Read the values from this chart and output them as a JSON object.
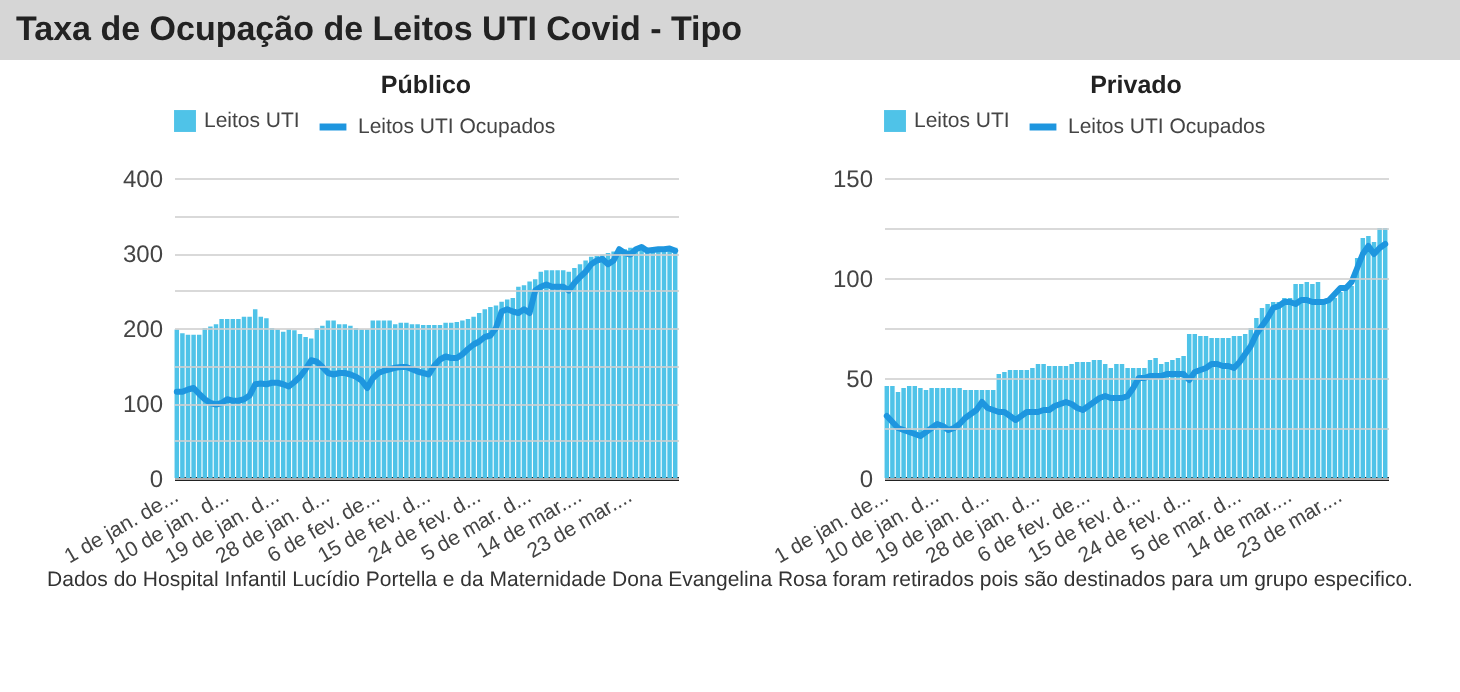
{
  "chart_data": [
    {
      "type": "other",
      "title": "Taxa de Ocupação de Leitos UTI Covid - Tipo"
    },
    {
      "type": "bar",
      "title": "Público",
      "legend": "top",
      "grid": "y",
      "line_style": "solid",
      "marker": "none",
      "ylim": [
        0,
        400
      ],
      "yticks": [
        0,
        {
          "value": 50,
          "label": null
        },
        100,
        {
          "value": 150,
          "label": null
        },
        200,
        {
          "value": 250,
          "label": null
        },
        300,
        {
          "value": 350,
          "label": null
        },
        400
      ],
      "categories": [
        "1 de jan. de...",
        null,
        null,
        null,
        null,
        null,
        null,
        null,
        null,
        "10 de jan. d...",
        null,
        null,
        null,
        null,
        null,
        null,
        null,
        null,
        "19 de jan. d...",
        null,
        null,
        null,
        null,
        null,
        null,
        null,
        null,
        "28 de jan. d...",
        null,
        null,
        null,
        null,
        null,
        null,
        null,
        null,
        "6 de fev. de...",
        null,
        null,
        null,
        null,
        null,
        null,
        null,
        null,
        "15 de fev. d...",
        null,
        null,
        null,
        null,
        null,
        null,
        null,
        null,
        "24 de fev. d...",
        null,
        null,
        null,
        null,
        null,
        null,
        null,
        null,
        "5 de mar. d...",
        null,
        null,
        null,
        null,
        null,
        null,
        null,
        null,
        "14 de mar....",
        null,
        null,
        null,
        null,
        null,
        null,
        null,
        null,
        "23 de mar....",
        null,
        null,
        null,
        null,
        null,
        null,
        null,
        null
      ],
      "series": [
        {
          "name": "Leitos UTI",
          "type": "bar",
          "color": "#4fc3e8",
          "values": [
            198,
            193,
            191,
            191,
            191,
            200,
            202,
            205,
            212,
            212,
            212,
            212,
            215,
            215,
            225,
            215,
            213,
            200,
            198,
            195,
            198,
            197,
            192,
            188,
            186,
            200,
            203,
            210,
            210,
            205,
            205,
            203,
            200,
            198,
            198,
            210,
            210,
            210,
            210,
            205,
            207,
            207,
            205,
            205,
            204,
            204,
            204,
            204,
            207,
            207,
            208,
            210,
            212,
            215,
            220,
            225,
            228,
            230,
            235,
            238,
            240,
            255,
            257,
            262,
            265,
            275,
            277,
            277,
            277,
            277,
            275,
            280,
            285,
            290,
            295,
            296,
            298,
            300,
            302,
            305,
            305,
            307,
            307,
            307,
            307,
            307,
            307,
            307,
            307,
            307
          ]
        },
        {
          "name": "Leitos UTI Ocupados",
          "type": "line",
          "color": "#1e96df",
          "values": [
            115,
            115,
            118,
            120,
            112,
            105,
            100,
            98,
            100,
            105,
            103,
            103,
            105,
            110,
            125,
            126,
            125,
            127,
            127,
            125,
            122,
            128,
            135,
            145,
            157,
            155,
            148,
            140,
            138,
            140,
            140,
            138,
            135,
            130,
            120,
            133,
            140,
            143,
            145,
            147,
            148,
            148,
            145,
            142,
            140,
            138,
            150,
            158,
            162,
            160,
            160,
            165,
            172,
            178,
            182,
            188,
            190,
            200,
            222,
            225,
            222,
            220,
            225,
            220,
            250,
            255,
            258,
            255,
            255,
            255,
            250,
            260,
            268,
            275,
            285,
            290,
            292,
            285,
            290,
            305,
            300,
            298,
            305,
            308,
            303,
            304,
            305,
            305,
            306,
            303
          ]
        }
      ]
    },
    {
      "type": "bar",
      "title": "Privado",
      "legend": "top",
      "grid": "y",
      "line_style": "solid",
      "marker": "none",
      "ylim": [
        0,
        150
      ],
      "yticks": [
        0,
        {
          "value": 25,
          "label": null
        },
        50,
        {
          "value": 75,
          "label": null
        },
        100,
        {
          "value": 125,
          "label": null
        },
        150
      ],
      "categories": [
        "1 de jan. de...",
        null,
        null,
        null,
        null,
        null,
        null,
        null,
        null,
        "10 de jan. d...",
        null,
        null,
        null,
        null,
        null,
        null,
        null,
        null,
        "19 de jan. d...",
        null,
        null,
        null,
        null,
        null,
        null,
        null,
        null,
        "28 de jan. d...",
        null,
        null,
        null,
        null,
        null,
        null,
        null,
        null,
        "6 de fev. de...",
        null,
        null,
        null,
        null,
        null,
        null,
        null,
        null,
        "15 de fev. d...",
        null,
        null,
        null,
        null,
        null,
        null,
        null,
        null,
        "24 de fev. d...",
        null,
        null,
        null,
        null,
        null,
        null,
        null,
        null,
        "5 de mar. d...",
        null,
        null,
        null,
        null,
        null,
        null,
        null,
        null,
        "14 de mar....",
        null,
        null,
        null,
        null,
        null,
        null,
        null,
        null,
        "23 de mar....",
        null,
        null,
        null,
        null,
        null,
        null,
        null,
        null
      ],
      "series": [
        {
          "name": "Leitos UTI",
          "type": "bar",
          "color": "#4fc3e8",
          "values": [
            46,
            46,
            43,
            45,
            46,
            46,
            45,
            44,
            45,
            45,
            45,
            45,
            45,
            45,
            44,
            44,
            44,
            44,
            44,
            44,
            52,
            53,
            54,
            54,
            54,
            54,
            55,
            57,
            57,
            56,
            56,
            56,
            56,
            57,
            58,
            58,
            58,
            59,
            59,
            57,
            55,
            57,
            57,
            55,
            55,
            55,
            55,
            59,
            60,
            57,
            58,
            59,
            60,
            61,
            72,
            72,
            71,
            71,
            70,
            70,
            70,
            70,
            71,
            71,
            72,
            75,
            80,
            85,
            87,
            88,
            88,
            90,
            90,
            97,
            97,
            98,
            97,
            98,
            88,
            88,
            90,
            93,
            95,
            96,
            110,
            120,
            121,
            118,
            125,
            125
          ]
        },
        {
          "name": "Leitos UTI Ocupados",
          "type": "line",
          "color": "#1e96df",
          "values": [
            31,
            28,
            25,
            24,
            23,
            22,
            21,
            23,
            25,
            27,
            26,
            24,
            25,
            27,
            30,
            32,
            34,
            38,
            35,
            34,
            33,
            33,
            31,
            29,
            31,
            33,
            33,
            33,
            34,
            34,
            36,
            37,
            38,
            37,
            35,
            34,
            36,
            38,
            40,
            41,
            40,
            40,
            40,
            41,
            45,
            50,
            50,
            51,
            51,
            51,
            52,
            52,
            52,
            52,
            49,
            53,
            54,
            55,
            57,
            57,
            56,
            56,
            55,
            58,
            62,
            66,
            72,
            76,
            80,
            85,
            86,
            88,
            88,
            87,
            89,
            89,
            88,
            88,
            88,
            89,
            92,
            95,
            95,
            98,
            105,
            112,
            116,
            112,
            115,
            117
          ]
        }
      ]
    },
    {
      "type": "other",
      "annotations": [
        "Dados do Hospital Infantil Lucídio Portella e da Maternidade Dona Evangelina Rosa foram retirados pois são destinados para um grupo especifico."
      ]
    }
  ]
}
